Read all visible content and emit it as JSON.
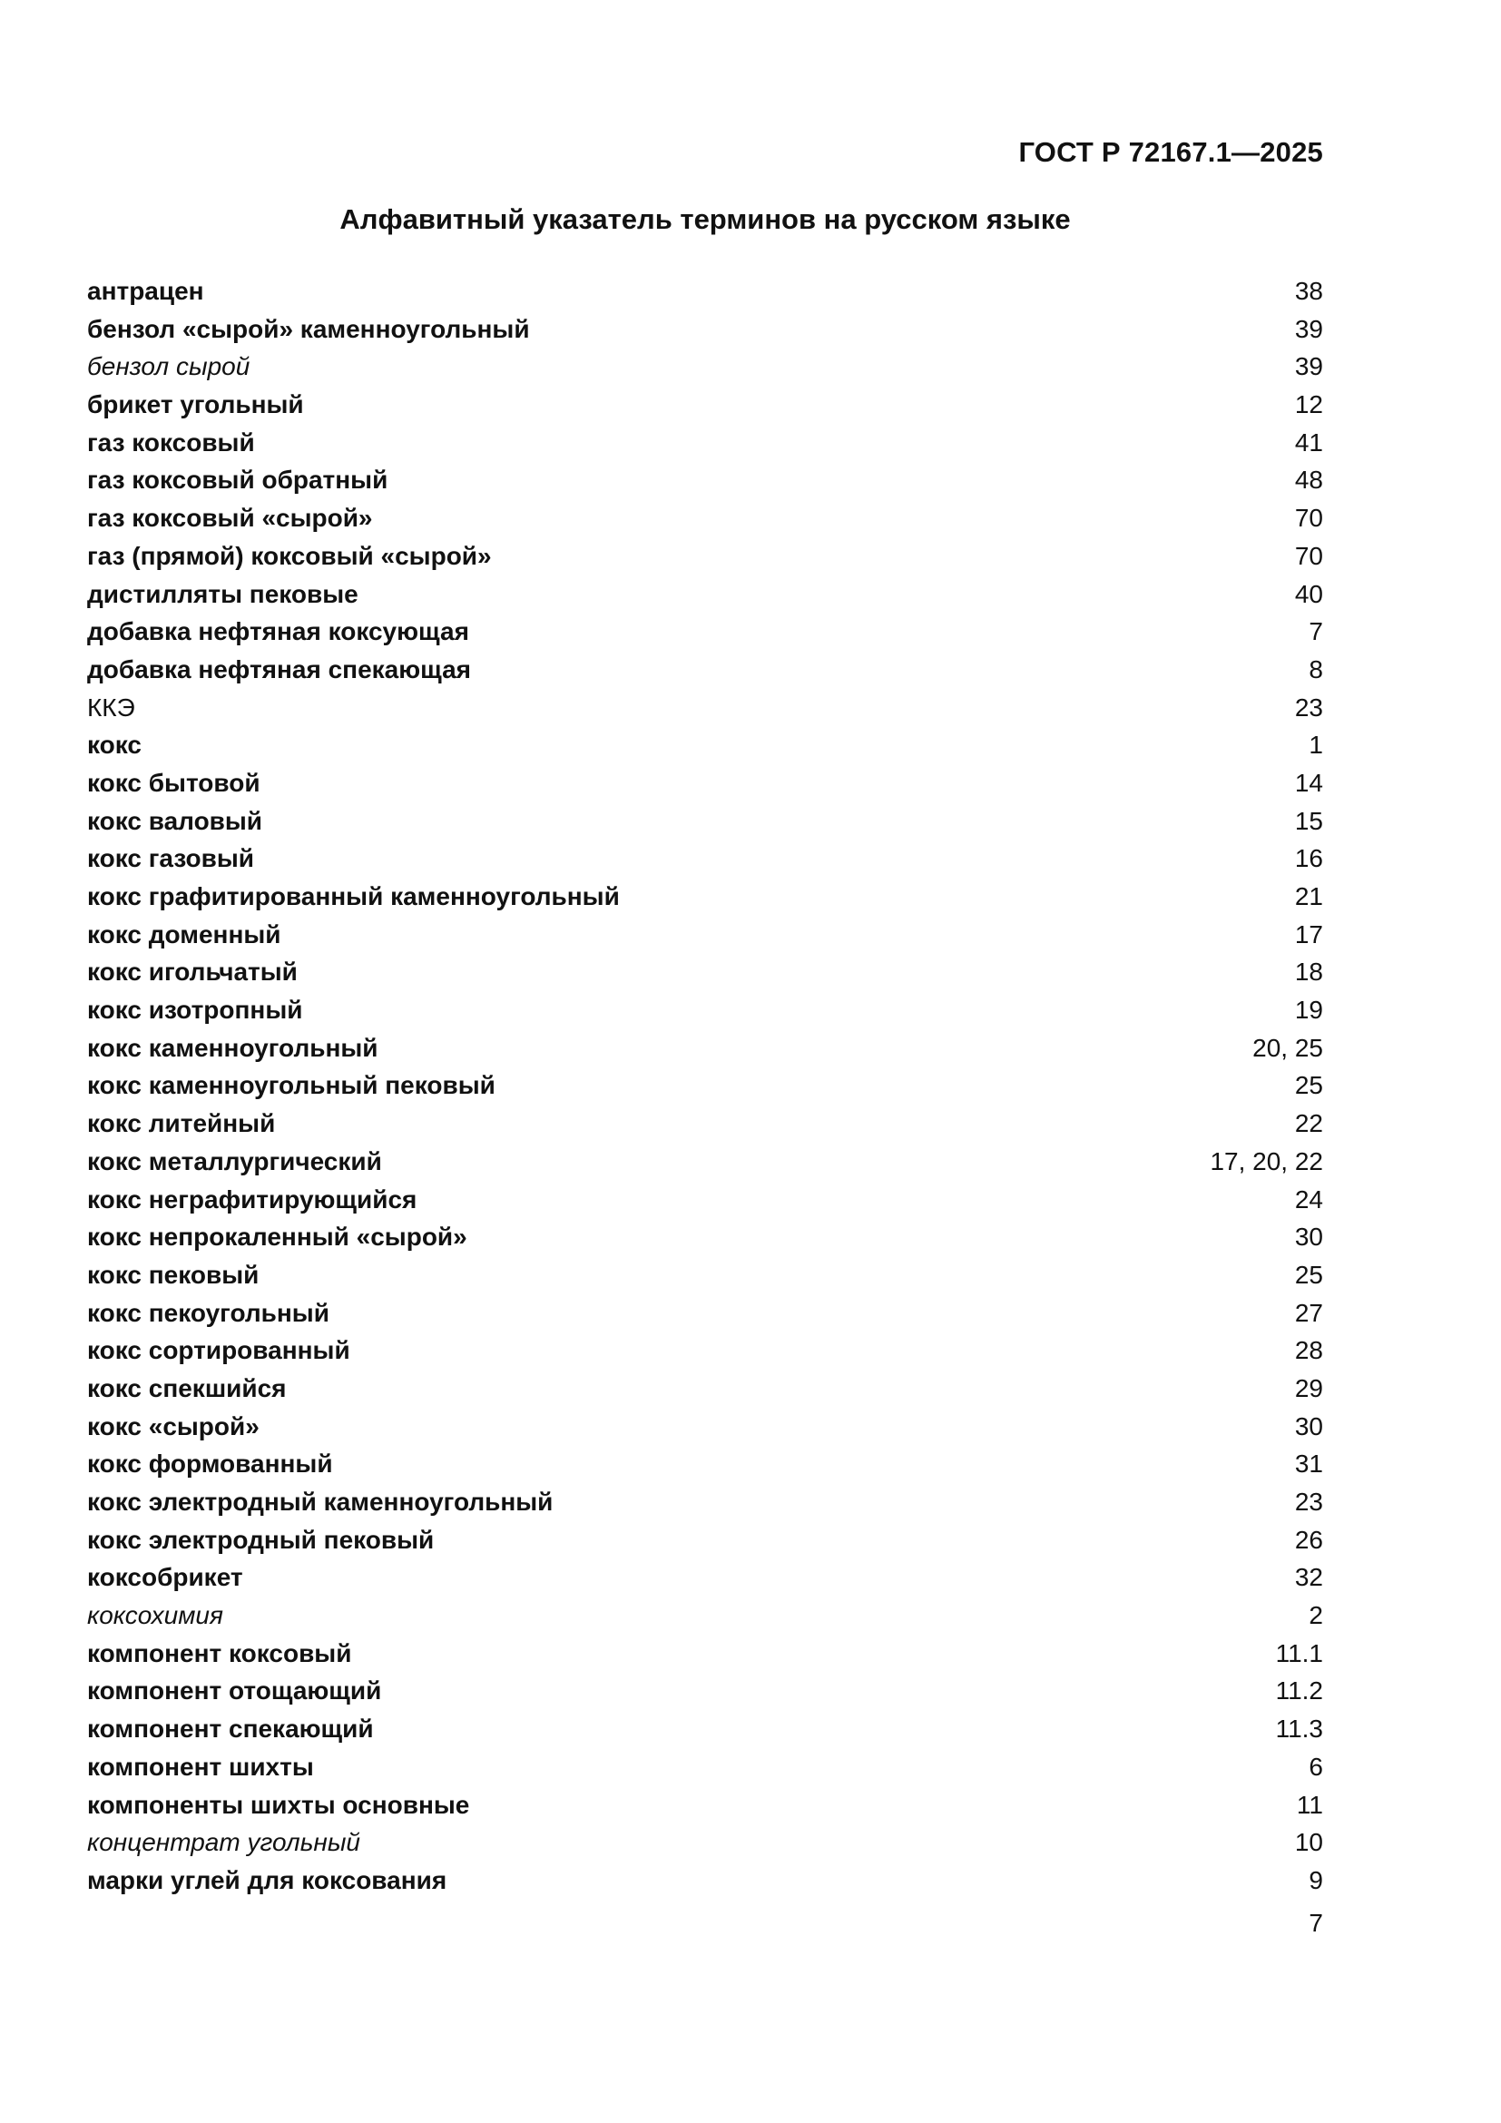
{
  "page": {
    "header": "ГОСТ Р 72167.1—2025",
    "title": "Алфавитный указатель терминов на русском языке",
    "page_number": "7"
  },
  "index": {
    "entries": [
      {
        "term": "антрацен",
        "style": "bold",
        "pages": "38"
      },
      {
        "term": "бензол «сырой» каменноугольный",
        "style": "bold",
        "pages": "39"
      },
      {
        "term": "бензол сырой",
        "style": "italic",
        "pages": "39"
      },
      {
        "term": "брикет угольный",
        "style": "bold",
        "pages": "12"
      },
      {
        "term": "газ коксовый",
        "style": "bold",
        "pages": "41"
      },
      {
        "term": "газ коксовый обратный",
        "style": "bold",
        "pages": "48"
      },
      {
        "term": "газ коксовый «сырой»",
        "style": "bold",
        "pages": "70"
      },
      {
        "term": "газ (прямой) коксовый «сырой»",
        "style": "bold",
        "pages": "70"
      },
      {
        "term": "дистилляты пековые",
        "style": "bold",
        "pages": "40"
      },
      {
        "term": "добавка нефтяная коксующая",
        "style": "bold",
        "pages": "7"
      },
      {
        "term": "добавка нефтяная спекающая",
        "style": "bold",
        "pages": "8"
      },
      {
        "term": "ККЭ",
        "style": "regular",
        "pages": "23"
      },
      {
        "term": "кокс",
        "style": "bold",
        "pages": "1"
      },
      {
        "term": "кокс бытовой",
        "style": "bold",
        "pages": "14"
      },
      {
        "term": "кокс валовый",
        "style": "bold",
        "pages": "15"
      },
      {
        "term": "кокс газовый",
        "style": "bold",
        "pages": "16"
      },
      {
        "term": "кокс графитированный каменноугольный",
        "style": "bold",
        "pages": "21"
      },
      {
        "term": "кокс доменный",
        "style": "bold",
        "pages": "17"
      },
      {
        "term": "кокс игольчатый",
        "style": "bold",
        "pages": "18"
      },
      {
        "term": "кокс изотропный",
        "style": "bold",
        "pages": "19"
      },
      {
        "term": "кокс каменноугольный",
        "style": "bold",
        "pages": "20, 25"
      },
      {
        "term": "кокс каменноугольный пековый",
        "style": "bold",
        "pages": "25"
      },
      {
        "term": "кокс литейный",
        "style": "bold",
        "pages": "22"
      },
      {
        "term": "кокс металлургический",
        "style": "bold",
        "pages": "17, 20, 22"
      },
      {
        "term": "кокс неграфитирующийся",
        "style": "bold",
        "pages": "24"
      },
      {
        "term": "кокс непрокаленный «сырой»",
        "style": "bold",
        "pages": "30"
      },
      {
        "term": "кокс пековый",
        "style": "bold",
        "pages": "25"
      },
      {
        "term": "кокс пекоугольный",
        "style": "bold",
        "pages": "27"
      },
      {
        "term": "кокс сортированный",
        "style": "bold",
        "pages": "28"
      },
      {
        "term": "кокс спекшийся",
        "style": "bold",
        "pages": "29"
      },
      {
        "term": "кокс «сырой»",
        "style": "bold",
        "pages": "30"
      },
      {
        "term": "кокс формованный",
        "style": "bold",
        "pages": "31"
      },
      {
        "term": "кокс электродный каменноугольный",
        "style": "bold",
        "pages": "23"
      },
      {
        "term": "кокс электродный пековый",
        "style": "bold",
        "pages": "26"
      },
      {
        "term": "коксобрикет",
        "style": "bold",
        "pages": "32"
      },
      {
        "term": "коксохимия",
        "style": "italic",
        "pages": "2"
      },
      {
        "term": "компонент коксовый",
        "style": "bold",
        "pages": "11.1"
      },
      {
        "term": "компонент отощающий",
        "style": "bold",
        "pages": "11.2"
      },
      {
        "term": "компонент спекающий",
        "style": "bold",
        "pages": "11.3"
      },
      {
        "term": "компонент шихты",
        "style": "bold",
        "pages": "6"
      },
      {
        "term": "компоненты шихты основные",
        "style": "bold",
        "pages": "11"
      },
      {
        "term": "концентрат угольный",
        "style": "italic",
        "pages": "10"
      },
      {
        "term": "марки углей для коксования",
        "style": "bold",
        "pages": "9"
      }
    ]
  }
}
